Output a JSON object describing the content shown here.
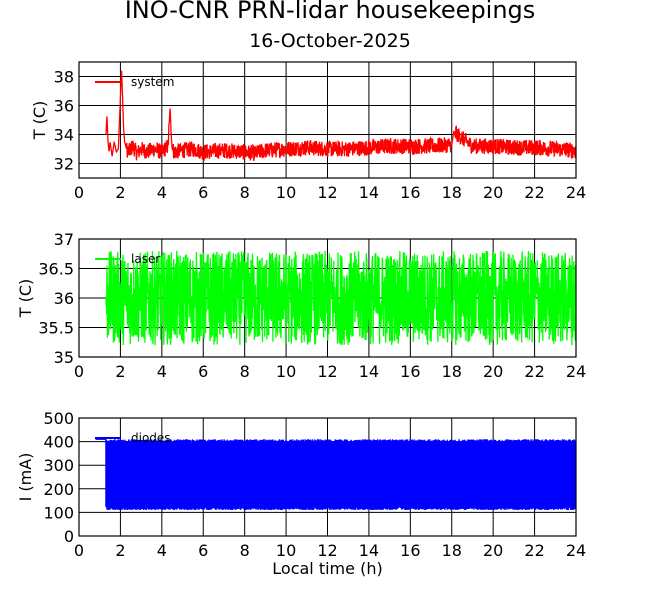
{
  "title": "INO-CNR PRN-lidar housekeepings",
  "subtitle": "16-October-2025",
  "chart_data": [
    {
      "type": "line",
      "ylabel": "T (C)",
      "xlabel": "",
      "xlim": [
        0,
        24
      ],
      "ylim": [
        31,
        39
      ],
      "xticks": [
        "0",
        "2",
        "4",
        "6",
        "8",
        "10",
        "12",
        "14",
        "16",
        "18",
        "20",
        "22",
        "24"
      ],
      "yticks": [
        "32",
        "34",
        "36",
        "38"
      ],
      "grid": true,
      "legend": "top-left",
      "series": [
        {
          "name": "system",
          "color": "#ff0000",
          "x": [
            1.3,
            1.35,
            1.4,
            1.45,
            1.5,
            1.6,
            1.7,
            1.8,
            1.9,
            2.0,
            2.05,
            2.1,
            2.15,
            2.2,
            2.3,
            2.4,
            2.5,
            2.6,
            2.8,
            3.0,
            3.3,
            3.6,
            4.0,
            4.3,
            4.4,
            4.45,
            4.5,
            4.6,
            5.0,
            5.5,
            6.0,
            7.0,
            8.0,
            8.5,
            9.0,
            10.0,
            11.0,
            12.0,
            13.0,
            14.0,
            15.0,
            16.0,
            17.0,
            18.0,
            18.1,
            19.0,
            20.0,
            21.0,
            22.0,
            23.0,
            24.0
          ],
          "y": [
            34.0,
            35.3,
            33.5,
            32.8,
            33.5,
            32.5,
            33.5,
            32.8,
            33.0,
            36.5,
            38.6,
            36.8,
            34.5,
            33.5,
            33.0,
            32.8,
            33.0,
            33.2,
            32.7,
            33.0,
            32.8,
            33.0,
            32.8,
            33.2,
            35.9,
            34.0,
            33.0,
            32.8,
            32.9,
            33.0,
            32.8,
            32.9,
            32.8,
            32.7,
            32.9,
            33.0,
            33.1,
            33.0,
            33.0,
            33.1,
            33.2,
            33.2,
            33.2,
            33.3,
            34.2,
            33.2,
            33.2,
            33.1,
            33.1,
            33.0,
            32.9
          ],
          "noise": 0.55
        }
      ]
    },
    {
      "type": "line",
      "ylabel": "T (C)",
      "xlabel": "",
      "xlim": [
        0,
        24
      ],
      "ylim": [
        35,
        37
      ],
      "xticks": [
        "0",
        "2",
        "4",
        "6",
        "8",
        "10",
        "12",
        "14",
        "16",
        "18",
        "20",
        "22",
        "24"
      ],
      "yticks": [
        "35",
        "35.5",
        "36",
        "36.5",
        "37"
      ],
      "grid": true,
      "legend": "top-left",
      "series": [
        {
          "name": "laser",
          "color": "#00ff00",
          "x": [
            1.3,
            24.0
          ],
          "y": [
            36.0,
            36.0
          ],
          "noise": 0.8
        }
      ]
    },
    {
      "type": "line",
      "ylabel": "I (mA)",
      "xlabel": "Local time (h)",
      "xlim": [
        0,
        24
      ],
      "ylim": [
        0,
        500
      ],
      "xticks": [
        "0",
        "2",
        "4",
        "6",
        "8",
        "10",
        "12",
        "14",
        "16",
        "18",
        "20",
        "22",
        "24"
      ],
      "yticks": [
        "0",
        "100",
        "200",
        "300",
        "400",
        "500"
      ],
      "grid": true,
      "legend": "top-left",
      "series": [
        {
          "name": "diodes",
          "color": "#0000ff",
          "x": [
            0.8,
            1.3,
            24.0
          ],
          "y": [
            410,
            410,
            260
          ],
          "band": [
            110,
            410
          ]
        }
      ]
    }
  ]
}
